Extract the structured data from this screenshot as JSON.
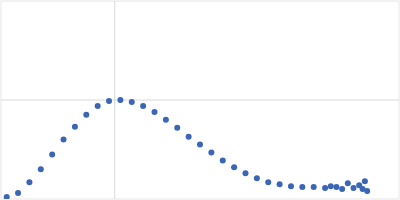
{
  "chart_data": {
    "type": "scatter",
    "color": "#3a66b5",
    "marker": "circle",
    "grid": true,
    "tick_labels": false,
    "xlim": [
      0,
      3.5
    ],
    "ylim": [
      0,
      2
    ],
    "xticks": [
      1
    ],
    "yticks": [
      1
    ],
    "x": [
      0.05,
      0.15,
      0.25,
      0.35,
      0.45,
      0.55,
      0.65,
      0.75,
      0.85,
      0.95,
      1.05,
      1.15,
      1.25,
      1.35,
      1.45,
      1.55,
      1.65,
      1.75,
      1.85,
      1.95,
      2.05,
      2.15,
      2.25,
      2.35,
      2.45,
      2.55,
      2.65,
      2.75,
      2.85,
      2.9,
      2.95,
      3.0,
      3.05,
      3.1,
      3.15,
      3.18,
      3.2,
      3.22
    ],
    "values": [
      0.02,
      0.06,
      0.17,
      0.3,
      0.45,
      0.6,
      0.73,
      0.85,
      0.94,
      0.99,
      1.0,
      0.98,
      0.94,
      0.88,
      0.8,
      0.72,
      0.63,
      0.55,
      0.47,
      0.39,
      0.32,
      0.26,
      0.21,
      0.17,
      0.15,
      0.13,
      0.12,
      0.12,
      0.11,
      0.13,
      0.12,
      0.1,
      0.16,
      0.11,
      0.14,
      0.1,
      0.18,
      0.08
    ]
  }
}
